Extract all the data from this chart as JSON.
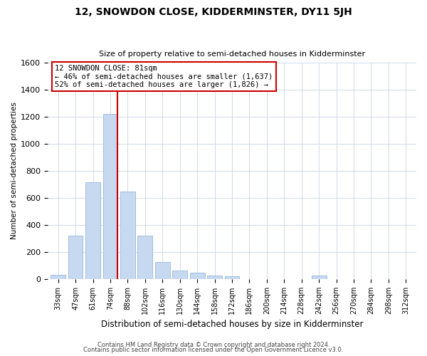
{
  "title": "12, SNOWDON CLOSE, KIDDERMINSTER, DY11 5JH",
  "subtitle": "Size of property relative to semi-detached houses in Kidderminster",
  "xlabel": "Distribution of semi-detached houses by size in Kidderminster",
  "ylabel": "Number of semi-detached properties",
  "bar_labels": [
    "33sqm",
    "47sqm",
    "61sqm",
    "74sqm",
    "88sqm",
    "102sqm",
    "116sqm",
    "130sqm",
    "144sqm",
    "158sqm",
    "172sqm",
    "186sqm",
    "200sqm",
    "214sqm",
    "228sqm",
    "242sqm",
    "256sqm",
    "270sqm",
    "284sqm",
    "298sqm",
    "312sqm"
  ],
  "bar_values": [
    30,
    320,
    715,
    1220,
    645,
    320,
    125,
    65,
    50,
    25,
    20,
    0,
    0,
    0,
    0,
    25,
    0,
    0,
    0,
    0,
    0
  ],
  "bar_color": "#c6d9f0",
  "bar_edgecolor": "#a0bedd",
  "marker_bar_index": 3,
  "marker_color": "#cc0000",
  "annotation_title": "12 SNOWDON CLOSE: 81sqm",
  "annotation_line1": "← 46% of semi-detached houses are smaller (1,637)",
  "annotation_line2": "52% of semi-detached houses are larger (1,826) →",
  "annotation_box_edgecolor": "#cc0000",
  "ylim": [
    0,
    1600
  ],
  "yticks": [
    0,
    200,
    400,
    600,
    800,
    1000,
    1200,
    1400,
    1600
  ],
  "footer1": "Contains HM Land Registry data © Crown copyright and database right 2024.",
  "footer2": "Contains public sector information licensed under the Open Government Licence v3.0.",
  "background_color": "#ffffff",
  "grid_color": "#d0d8e8"
}
